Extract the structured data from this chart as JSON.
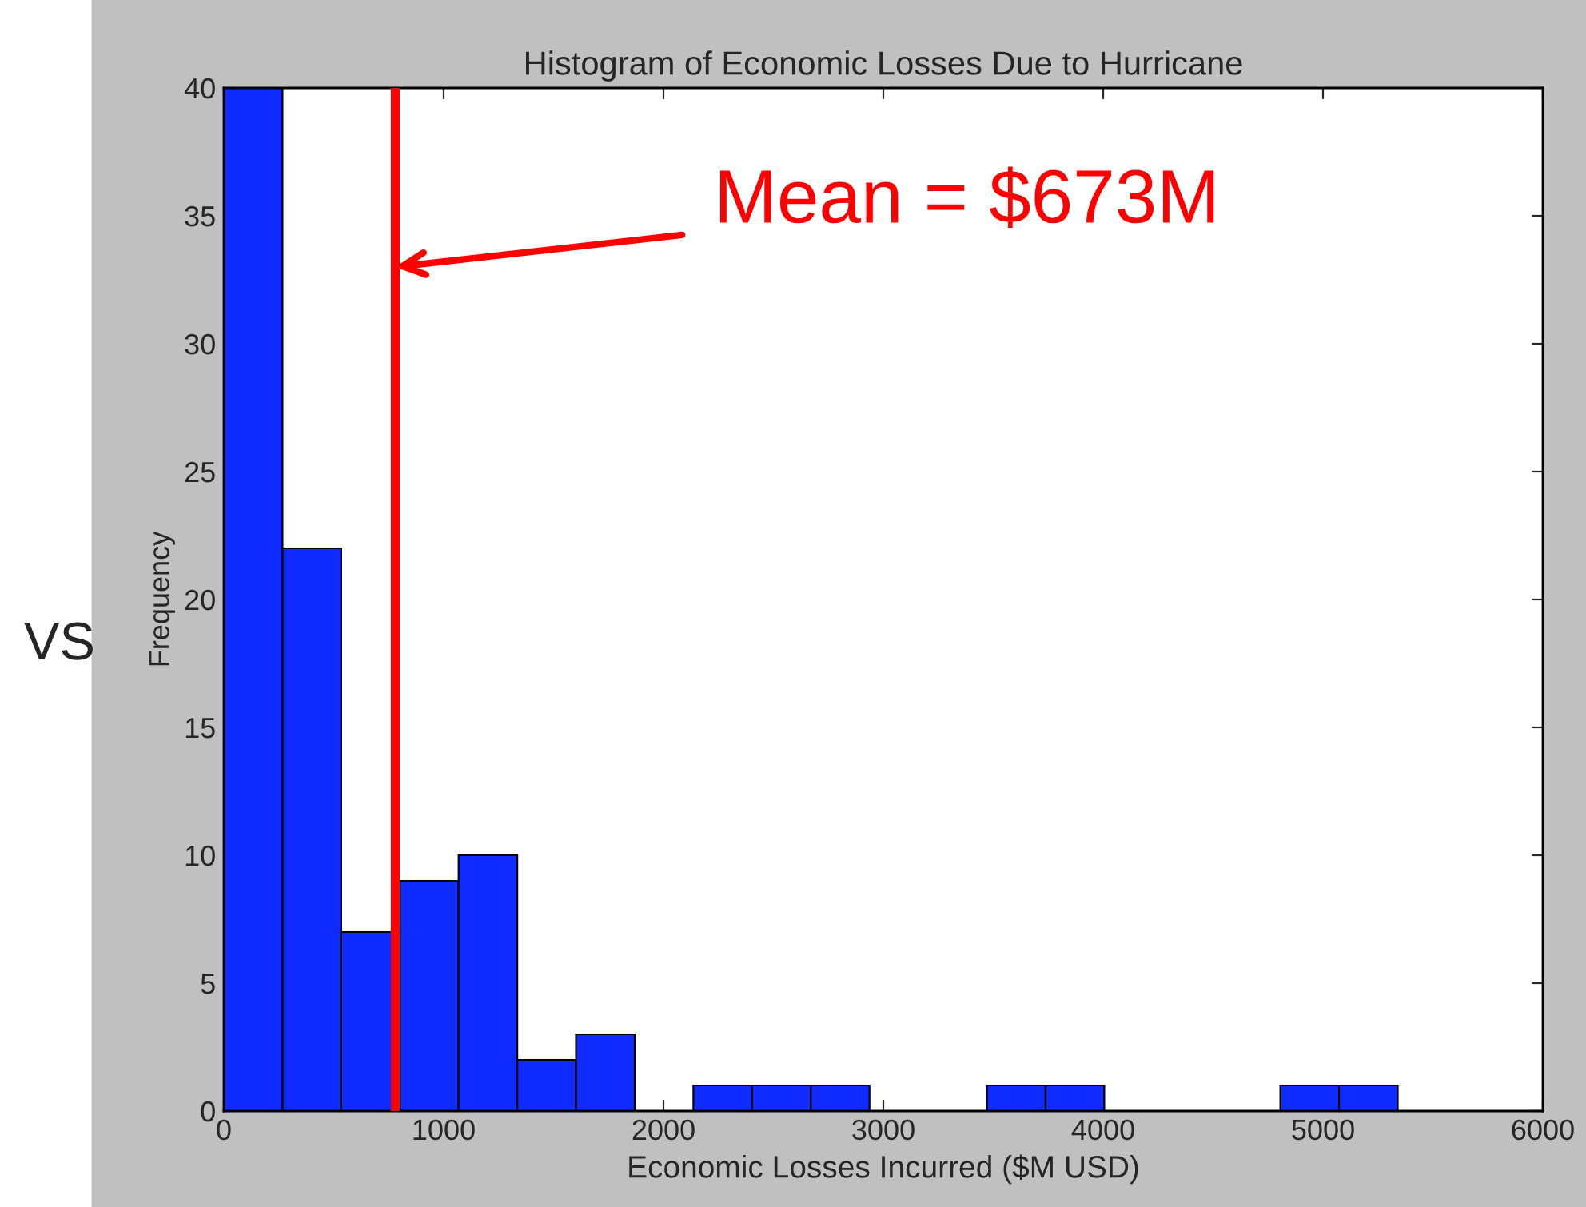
{
  "chart_data": {
    "type": "histogram",
    "title": "Histogram of Economic Losses Due to Hurricane",
    "xlabel": "Economic Losses Incurred ($M USD)",
    "ylabel": "Frequency",
    "bins": [
      0,
      267,
      534,
      801,
      1068,
      1335,
      1602,
      1869,
      2136,
      2403,
      2670,
      2937,
      3204,
      3471,
      3738,
      4005,
      4272,
      4539,
      4806,
      5073,
      5340
    ],
    "values": [
      40,
      22,
      7,
      9,
      10,
      2,
      3,
      0,
      1,
      1,
      1,
      0,
      0,
      1,
      1,
      0,
      0,
      0,
      1,
      1
    ],
    "color": "#0f2bff",
    "xlim": [
      0,
      6000
    ],
    "xticks": [
      0,
      1000,
      2000,
      3000,
      4000,
      5000,
      6000
    ],
    "ylim": [
      0,
      40
    ],
    "yticks": [
      0,
      5,
      10,
      15,
      20,
      25,
      30,
      35,
      40
    ],
    "grid": false,
    "ref_lines": [
      {
        "axis": "x",
        "value": 780,
        "color": "#ff0000"
      }
    ],
    "annotations": [
      {
        "text": "Mean = $673M",
        "x": 780,
        "y": 33
      },
      "VS"
    ]
  }
}
